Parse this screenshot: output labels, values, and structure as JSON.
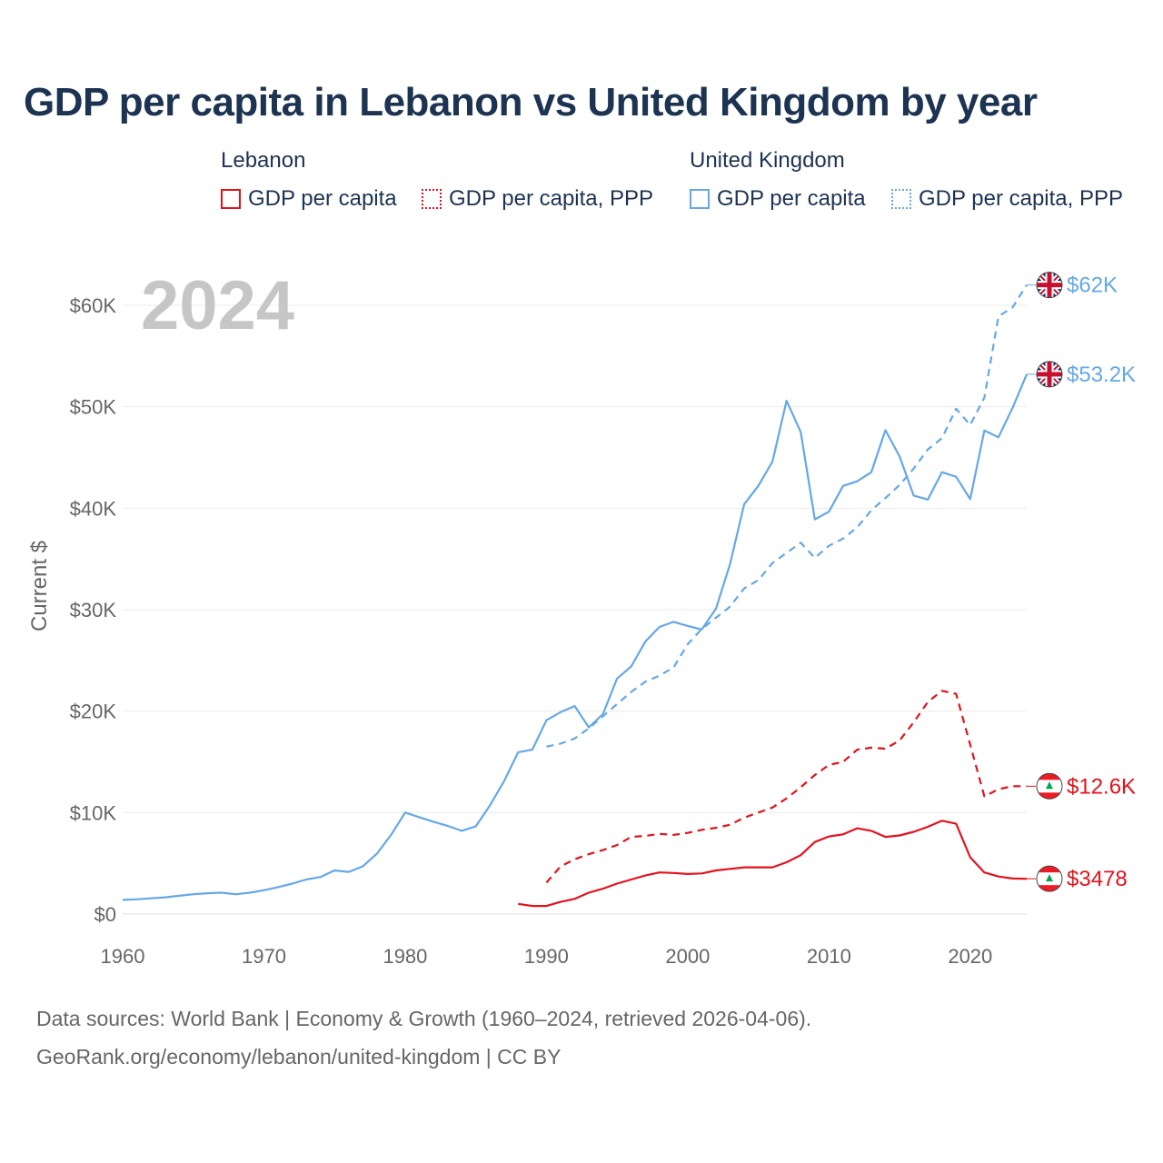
{
  "title": "GDP per capita in Lebanon vs United Kingdom by year",
  "legend": {
    "groups": [
      {
        "name": "Lebanon",
        "color": "#e3121b",
        "items": [
          "GDP per capita",
          "GDP per capita, PPP"
        ]
      },
      {
        "name": "United Kingdom",
        "color": "#64a8e6",
        "items": [
          "GDP per capita",
          "GDP per capita, PPP"
        ]
      }
    ]
  },
  "year_label": "2024",
  "source": {
    "line1": "Data sources: World Bank | Economy & Growth (1960–2024, retrieved 2026-04-06).",
    "line2": "GeoRank.org/economy/lebanon/united-kingdom | CC BY"
  },
  "chart_data": {
    "type": "line",
    "title": "GDP per capita in Lebanon vs United Kingdom by year",
    "xlabel": "",
    "ylabel": "Current $",
    "xlim": [
      1960,
      2024
    ],
    "ylim": [
      0,
      65000
    ],
    "x_ticks": [
      1960,
      1970,
      1980,
      1990,
      2000,
      2010,
      2020
    ],
    "y_ticks": [
      0,
      10000,
      20000,
      30000,
      40000,
      50000,
      60000
    ],
    "y_tick_labels": [
      "$0",
      "$10K",
      "$20K",
      "$30K",
      "$40K",
      "$50K",
      "$60K"
    ],
    "grid": true,
    "series": [
      {
        "name": "United Kingdom GDP per capita",
        "color": "#64a8e6",
        "dash": "solid",
        "end_label": "$53.2K",
        "flag": "uk",
        "x": [
          1960,
          1961,
          1962,
          1963,
          1964,
          1965,
          1966,
          1967,
          1968,
          1969,
          1970,
          1971,
          1972,
          1973,
          1974,
          1975,
          1976,
          1977,
          1978,
          1979,
          1980,
          1981,
          1982,
          1983,
          1984,
          1985,
          1986,
          1987,
          1988,
          1989,
          1990,
          1991,
          1992,
          1993,
          1994,
          1995,
          1996,
          1997,
          1998,
          1999,
          2000,
          2001,
          2002,
          2003,
          2004,
          2005,
          2006,
          2007,
          2008,
          2009,
          2010,
          2011,
          2012,
          2013,
          2014,
          2015,
          2016,
          2017,
          2018,
          2019,
          2020,
          2021,
          2022,
          2023,
          2024
        ],
        "values": [
          1400,
          1450,
          1550,
          1650,
          1800,
          1950,
          2050,
          2100,
          1950,
          2100,
          2350,
          2650,
          3000,
          3400,
          3650,
          4300,
          4150,
          4700,
          5950,
          7800,
          10000,
          9550,
          9100,
          8700,
          8200,
          8650,
          10700,
          13100,
          15950,
          16200,
          19100,
          19900,
          20500,
          18400,
          19700,
          23200,
          24400,
          26850,
          28300,
          28800,
          28400,
          28050,
          30100,
          34500,
          40400,
          42200,
          44600,
          50600,
          47500,
          38900,
          39650,
          42200,
          42650,
          43550,
          47700,
          45100,
          41250,
          40850,
          43550,
          43100,
          40900,
          47650,
          47000,
          49900,
          53200
        ]
      },
      {
        "name": "United Kingdom GDP per capita, PPP",
        "color": "#64a8e6",
        "dash": "dashed",
        "end_label": "$62K",
        "flag": "uk",
        "x": [
          1990,
          1991,
          1992,
          1993,
          1994,
          1995,
          1996,
          1997,
          1998,
          1999,
          2000,
          2001,
          2002,
          2003,
          2004,
          2005,
          2006,
          2007,
          2008,
          2009,
          2010,
          2011,
          2012,
          2013,
          2014,
          2015,
          2016,
          2017,
          2018,
          2019,
          2020,
          2021,
          2022,
          2023,
          2024
        ],
        "values": [
          16500,
          16800,
          17300,
          18300,
          19500,
          20700,
          21900,
          22900,
          23500,
          24300,
          26600,
          28100,
          29200,
          30300,
          32100,
          32900,
          34600,
          35600,
          36600,
          35100,
          36300,
          37000,
          38100,
          39800,
          41000,
          42300,
          43900,
          45800,
          46900,
          49800,
          48200,
          50900,
          58900,
          59800,
          62000
        ]
      },
      {
        "name": "Lebanon GDP per capita",
        "color": "#e3121b",
        "dash": "solid",
        "end_label": "$3478",
        "flag": "lb",
        "x": [
          1988,
          1989,
          1990,
          1991,
          1992,
          1993,
          1994,
          1995,
          1996,
          1997,
          1998,
          1999,
          2000,
          2001,
          2002,
          2003,
          2004,
          2005,
          2006,
          2007,
          2008,
          2009,
          2010,
          2011,
          2012,
          2013,
          2014,
          2015,
          2016,
          2017,
          2018,
          2019,
          2020,
          2021,
          2022,
          2023,
          2024
        ],
        "values": [
          1000,
          800,
          800,
          1200,
          1500,
          2100,
          2500,
          3000,
          3400,
          3800,
          4100,
          4050,
          3950,
          4000,
          4300,
          4450,
          4600,
          4600,
          4600,
          5100,
          5800,
          7100,
          7650,
          7850,
          8450,
          8200,
          7600,
          7750,
          8100,
          8600,
          9200,
          8900,
          5600,
          4100,
          3700,
          3500,
          3478
        ]
      },
      {
        "name": "Lebanon GDP per capita, PPP",
        "color": "#e3121b",
        "dash": "dashed",
        "end_label": "$12.6K",
        "flag": "lb",
        "x": [
          1990,
          1991,
          1992,
          1993,
          1994,
          1995,
          1996,
          1997,
          1998,
          1999,
          2000,
          2001,
          2002,
          2003,
          2004,
          2005,
          2006,
          2007,
          2008,
          2009,
          2010,
          2011,
          2012,
          2013,
          2014,
          2015,
          2016,
          2017,
          2018,
          2019,
          2020,
          2021,
          2022,
          2023,
          2024
        ],
        "values": [
          3100,
          4700,
          5400,
          5900,
          6300,
          6800,
          7600,
          7700,
          7900,
          7800,
          8000,
          8300,
          8500,
          8800,
          9500,
          10000,
          10500,
          11400,
          12500,
          13700,
          14700,
          15000,
          16200,
          16400,
          16300,
          17100,
          18900,
          20900,
          22000,
          21700,
          16700,
          11600,
          12300,
          12600,
          12600
        ]
      }
    ]
  }
}
